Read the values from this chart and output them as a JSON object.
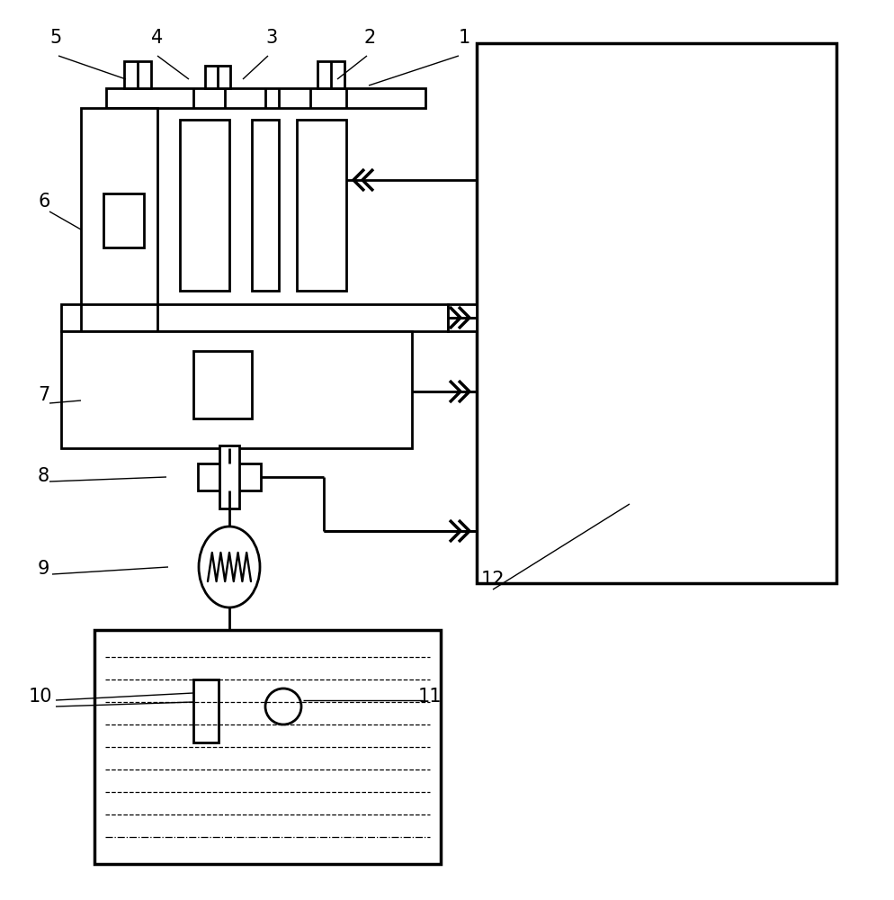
{
  "bg_color": "#ffffff",
  "line_color": "#000000",
  "lw": 2.0,
  "lw_thick": 2.5,
  "lw_thin": 1.0,
  "lw_label": 1.0
}
